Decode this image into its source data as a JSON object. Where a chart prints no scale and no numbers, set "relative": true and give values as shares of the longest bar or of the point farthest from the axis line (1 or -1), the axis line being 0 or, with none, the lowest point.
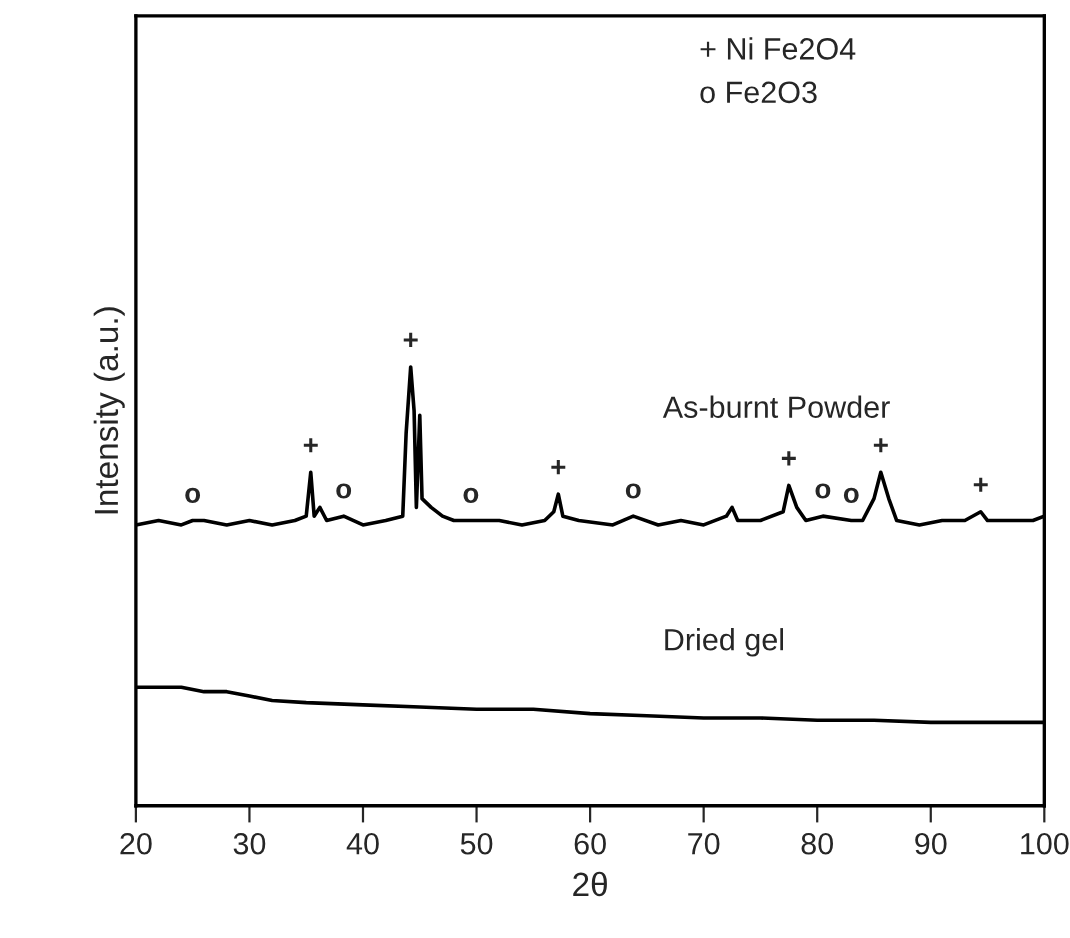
{
  "chart_data": {
    "type": "line",
    "relative": true,
    "xlabel": "2θ",
    "ylabel": "Intensity (a.u.)",
    "xlim": [
      20,
      100
    ],
    "xticks": [
      20,
      30,
      40,
      50,
      60,
      70,
      80,
      90,
      100
    ],
    "legend": false,
    "grid": false,
    "marker": "none",
    "line_style": "solid",
    "series": [
      {
        "name": "As-burnt Powder",
        "color": "#000000",
        "x": [
          20,
          22,
          24,
          25,
          26,
          28,
          30,
          32,
          34,
          35.0,
          35.4,
          35.7,
          36.2,
          36.8,
          38.3,
          40,
          42,
          43.5,
          43.8,
          44.2,
          44.5,
          44.7,
          45.0,
          45.2,
          46,
          47,
          48,
          49.5,
          52,
          54,
          56,
          56.8,
          57.2,
          57.6,
          59,
          62,
          63.8,
          66,
          68,
          70,
          72,
          72.5,
          73,
          75,
          77,
          77.5,
          78.2,
          79,
          80.5,
          83,
          84,
          85,
          85.6,
          86.3,
          87,
          89,
          91,
          93,
          94.4,
          95,
          97,
          99,
          100
        ],
        "values": [
          0.64,
          0.65,
          0.64,
          0.65,
          0.65,
          0.64,
          0.65,
          0.64,
          0.65,
          0.66,
          0.76,
          0.66,
          0.68,
          0.65,
          0.66,
          0.64,
          0.65,
          0.66,
          0.85,
          1.0,
          0.9,
          0.68,
          0.89,
          0.7,
          0.68,
          0.66,
          0.65,
          0.65,
          0.65,
          0.64,
          0.65,
          0.67,
          0.71,
          0.66,
          0.65,
          0.64,
          0.66,
          0.64,
          0.65,
          0.64,
          0.66,
          0.68,
          0.65,
          0.65,
          0.67,
          0.73,
          0.68,
          0.65,
          0.66,
          0.65,
          0.65,
          0.7,
          0.76,
          0.7,
          0.65,
          0.64,
          0.65,
          0.65,
          0.67,
          0.65,
          0.65,
          0.65,
          0.66
        ]
      },
      {
        "name": "Dried gel",
        "color": "#000000",
        "x": [
          20,
          22,
          24,
          26,
          28,
          30,
          32,
          35,
          40,
          45,
          50,
          55,
          60,
          65,
          70,
          75,
          80,
          85,
          90,
          95,
          100
        ],
        "values": [
          0.27,
          0.27,
          0.27,
          0.26,
          0.26,
          0.25,
          0.24,
          0.235,
          0.23,
          0.225,
          0.22,
          0.22,
          0.21,
          0.205,
          0.2,
          0.2,
          0.195,
          0.195,
          0.19,
          0.19,
          0.19
        ]
      }
    ],
    "annotations": [
      "+ Ni Fe2O4",
      "o Fe2O3",
      {
        "text": "+",
        "x": 35.4,
        "y": 0.76
      },
      {
        "text": "+",
        "x": 44.2,
        "y": 1.0
      },
      {
        "text": "+",
        "x": 57.2,
        "y": 0.71
      },
      {
        "text": "+",
        "x": 77.5,
        "y": 0.73
      },
      {
        "text": "+",
        "x": 85.6,
        "y": 0.76
      },
      {
        "text": "+",
        "x": 94.4,
        "y": 0.67
      },
      {
        "text": "o",
        "x": 25,
        "y": 0.65
      },
      {
        "text": "o",
        "x": 38.3,
        "y": 0.66
      },
      {
        "text": "o",
        "x": 49.5,
        "y": 0.65
      },
      {
        "text": "o",
        "x": 63.8,
        "y": 0.66
      },
      {
        "text": "o",
        "x": 80.5,
        "y": 0.66
      },
      {
        "text": "o",
        "x": 83,
        "y": 0.65
      }
    ]
  }
}
